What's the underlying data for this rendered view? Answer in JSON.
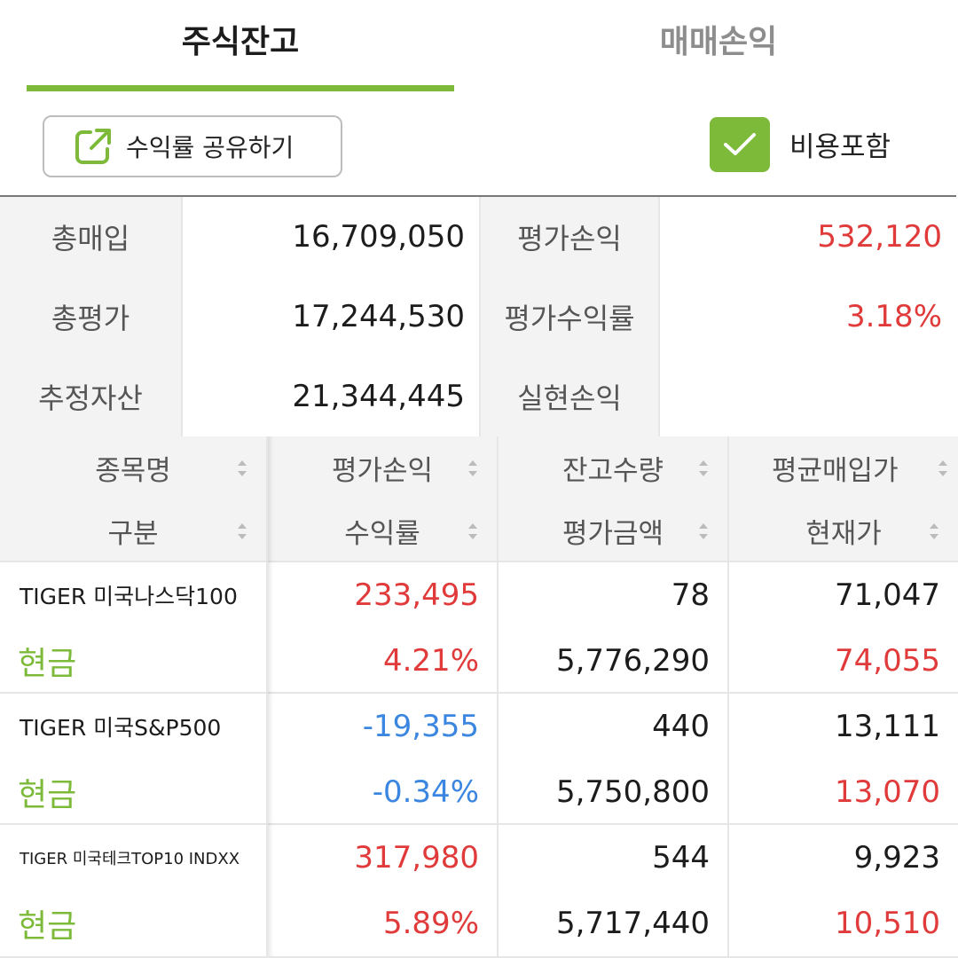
{
  "tabs": [
    {
      "label": "주식잔고",
      "active": true
    },
    {
      "label": "매매손익",
      "active": false
    }
  ],
  "toolbar": {
    "share_label": "수익률 공유하기",
    "include_fees_label": "비용포함",
    "include_fees_checked": true
  },
  "summary": {
    "total_purchase": {
      "label": "총매입",
      "value": "16,709,050"
    },
    "eval_pl": {
      "label": "평가손익",
      "value": "532,120"
    },
    "total_eval": {
      "label": "총평가",
      "value": "17,244,530"
    },
    "eval_return": {
      "label": "평가수익률",
      "value": "3.18%"
    },
    "est_assets": {
      "label": "추정자산",
      "value": "21,344,445"
    },
    "realized_pl": {
      "label": "실현손익",
      "value": ""
    }
  },
  "holdings_header": {
    "col1": {
      "top": "종목명",
      "bottom": "구분"
    },
    "col2": {
      "top": "평가손익",
      "bottom": "수익률"
    },
    "col3": {
      "top": "잔고수량",
      "bottom": "평가금액"
    },
    "col4": {
      "top": "평균매입가",
      "bottom": "현재가"
    }
  },
  "holdings": [
    {
      "name": "TIGER 미국나스닥100",
      "type": "현금",
      "eval_pl": "233,495",
      "return": "4.21%",
      "qty": "78",
      "eval_amount": "5,776,290",
      "avg_price": "71,047",
      "current_price": "74,055"
    },
    {
      "name": "TIGER 미국S&P500",
      "type": "현금",
      "eval_pl": "-19,355",
      "return": "-0.34%",
      "qty": "440",
      "eval_amount": "5,750,800",
      "avg_price": "13,111",
      "current_price": "13,070"
    },
    {
      "name": "TIGER 미국테크TOP10 INDXX",
      "type": "현금",
      "eval_pl": "317,980",
      "return": "5.89%",
      "qty": "544",
      "eval_amount": "5,717,440",
      "avg_price": "9,923",
      "current_price": "10,510"
    }
  ],
  "colors": {
    "accent": "#7dba3a",
    "gain": "#e03a3a",
    "loss": "#3a86e0"
  },
  "icons": {
    "share": "external-link-icon",
    "check": "check-icon",
    "sort": "sort-icon"
  }
}
